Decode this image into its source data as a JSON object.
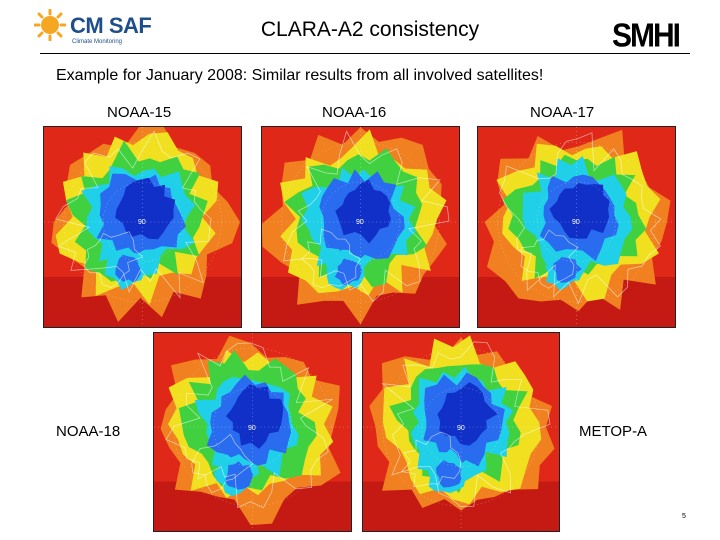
{
  "header": {
    "logo_left_text": "CM SAF",
    "logo_left_tagline": "Climate Monitoring",
    "title": "CLARA-A2 consistency",
    "logo_right_text": "SMHI"
  },
  "subtitle": "Example for January 2008: Similar results from all involved satellites!",
  "panels": [
    {
      "label": "NOAA-15",
      "center_mark": "90"
    },
    {
      "label": "NOAA-16",
      "center_mark": "90"
    },
    {
      "label": "NOAA-17",
      "center_mark": "90"
    },
    {
      "label": "NOAA-18",
      "center_mark": "90"
    },
    {
      "label": "METOP-A",
      "center_mark": "90"
    }
  ],
  "colors": {
    "deep_blue": "#1030c8",
    "blue": "#2a6cf0",
    "cyan": "#20d0e8",
    "green": "#40d040",
    "yellow": "#f0e020",
    "orange": "#f08020",
    "red": "#e02818",
    "dark_red": "#b01010"
  },
  "page_number": "5"
}
